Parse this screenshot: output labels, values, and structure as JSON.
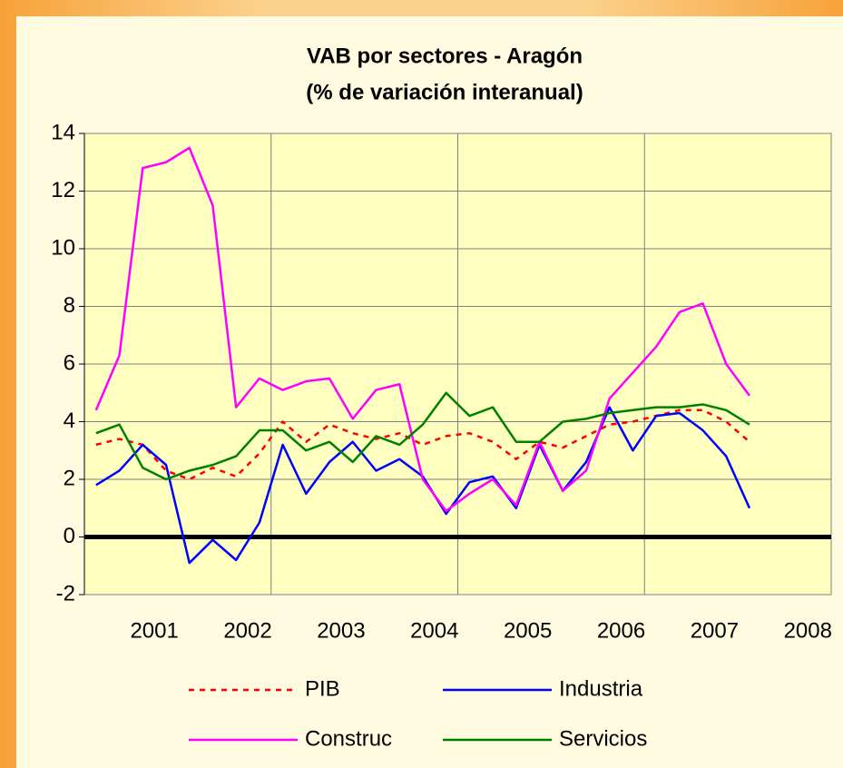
{
  "chart_data": {
    "type": "line",
    "title": "VAB por sectores - Aragón",
    "subtitle": "(% de variación interanual)",
    "x": [
      2000.375,
      2000.625,
      2000.875,
      2001.125,
      2001.375,
      2001.625,
      2001.875,
      2002.125,
      2002.375,
      2002.625,
      2002.875,
      2003.125,
      2003.375,
      2003.625,
      2003.875,
      2004.125,
      2004.375,
      2004.625,
      2004.875,
      2005.125,
      2005.375,
      2005.625,
      2005.875,
      2006.125,
      2006.375,
      2006.625,
      2006.875,
      2007.125,
      2007.375
    ],
    "series": [
      {
        "name": "PIB",
        "color": "#ff0000",
        "dashed": true,
        "values": [
          3.2,
          3.4,
          3.2,
          2.3,
          2.0,
          2.4,
          2.1,
          2.9,
          4.0,
          3.3,
          3.9,
          3.6,
          3.4,
          3.6,
          3.2,
          3.5,
          3.6,
          3.3,
          2.7,
          3.3,
          3.1,
          3.5,
          3.9,
          4.0,
          4.2,
          4.4,
          4.4,
          4.0,
          3.3
        ]
      },
      {
        "name": "Industria",
        "color": "#0000ff",
        "values": [
          1.8,
          2.3,
          3.2,
          2.5,
          -0.9,
          -0.1,
          -0.8,
          0.5,
          3.2,
          1.5,
          2.6,
          3.3,
          2.3,
          2.7,
          2.1,
          0.8,
          1.9,
          2.1,
          1.0,
          3.2,
          1.6,
          2.6,
          4.5,
          3.0,
          4.2,
          4.3,
          3.7,
          2.8,
          1.0
        ]
      },
      {
        "name": "Construc",
        "color": "#ff00ff",
        "values": [
          4.4,
          6.3,
          12.8,
          13.0,
          13.5,
          11.5,
          4.5,
          5.5,
          5.1,
          5.4,
          5.5,
          4.1,
          5.1,
          5.3,
          2.0,
          0.9,
          1.5,
          2.0,
          1.1,
          3.3,
          1.6,
          2.3,
          4.8,
          5.7,
          6.6,
          7.8,
          8.1,
          6.0,
          4.9
        ]
      },
      {
        "name": "Servicios",
        "color": "#008000",
        "values": [
          3.6,
          3.9,
          2.4,
          2.0,
          2.3,
          2.5,
          2.8,
          3.7,
          3.7,
          3.0,
          3.3,
          2.6,
          3.5,
          3.2,
          3.9,
          5.0,
          4.2,
          4.5,
          3.3,
          3.3,
          4.0,
          4.1,
          4.3,
          4.4,
          4.5,
          4.5,
          4.6,
          4.4,
          3.9
        ]
      }
    ],
    "xlim": [
      2000.25,
      2008.25
    ],
    "xticks": [
      2001,
      2002,
      2003,
      2004,
      2005,
      2006,
      2007,
      2008
    ],
    "xgrid": [
      2002.25,
      2004.25,
      2006.25
    ],
    "ylim": [
      -2,
      14
    ],
    "yticks": [
      -2,
      0,
      2,
      4,
      6,
      8,
      10,
      12,
      14
    ],
    "grid": true,
    "legend": "bottom"
  }
}
